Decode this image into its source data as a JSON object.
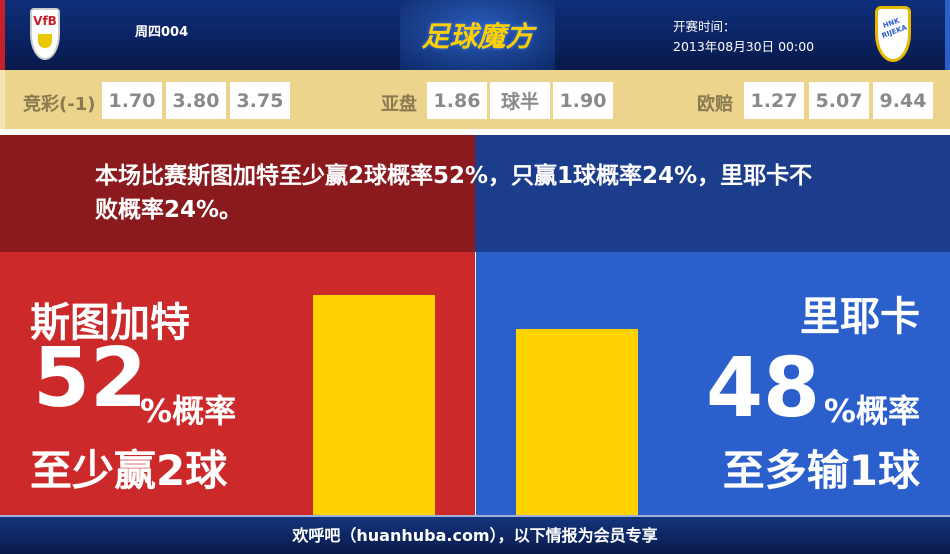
{
  "header": {
    "home_logo_text": "VfB",
    "match_no": "周四004",
    "brand": "足球魔方",
    "kickoff_label": "开赛时间：",
    "kickoff_time": "2013年08月30日 00:00",
    "away_logo_text": "HNK RIJEKA"
  },
  "odds": {
    "jingcai": {
      "label": "竞彩(-1)",
      "values": [
        "1.70",
        "3.80",
        "3.75"
      ]
    },
    "asian": {
      "label": "亚盘",
      "values": [
        "1.86",
        "球半",
        "1.90"
      ]
    },
    "euro": {
      "label": "欧赔",
      "values": [
        "1.27",
        "5.07",
        "9.44"
      ]
    }
  },
  "summary": "本场比赛斯图加特至少赢2球概率52%，只赢1球概率24%，里耶卡不败概率24%。",
  "home": {
    "name": "斯图加特",
    "percent": "52",
    "percent_suffix": "%概率",
    "outcome": "至少赢2球",
    "value": 52,
    "color": "#cc2a2a"
  },
  "away": {
    "name": "里耶卡",
    "percent": "48",
    "percent_suffix": "%概率",
    "outcome": "至多输1球",
    "value": 48,
    "color": "#2a5fcc"
  },
  "footer": "欢呼吧（huanhuba.com），以下情报为会员专享"
}
